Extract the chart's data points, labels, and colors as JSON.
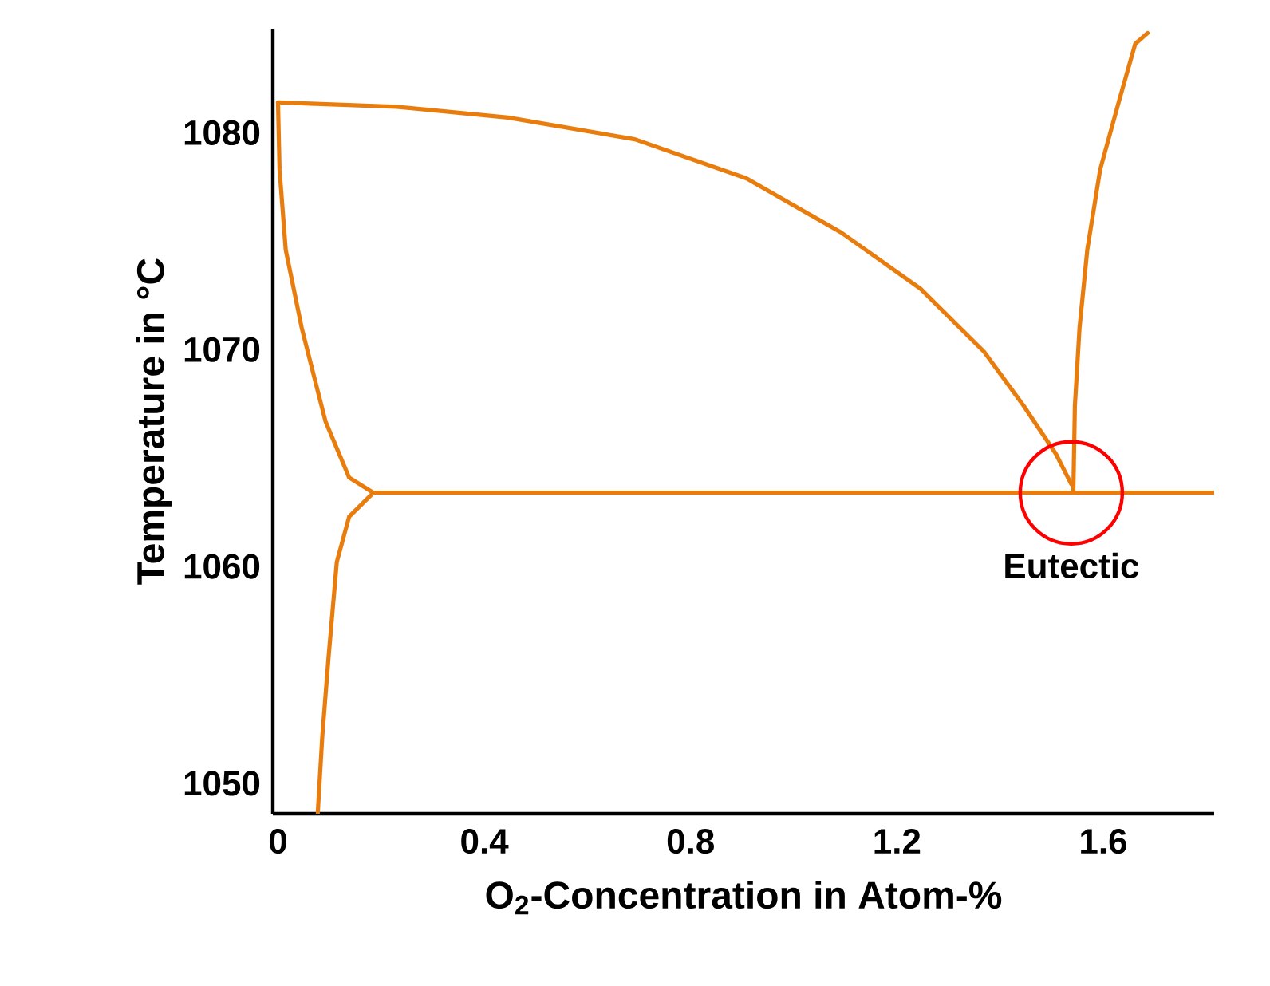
{
  "chart_data": {
    "type": "line",
    "xlabel": "O$_{2}$-Concentration in Atom-%",
    "ylabel": "Temperature in °C",
    "xlim": [
      -0.01,
      1.815
    ],
    "ylim": [
      1048.6,
      1084.8
    ],
    "xticks": [
      {
        "value": 0,
        "label": "0"
      },
      0.4,
      0.8,
      1.2,
      1.6
    ],
    "yticks": [
      1050,
      1060,
      1070,
      1080
    ],
    "marker": "none",
    "line_style": "solid",
    "series": [
      {
        "color": "#e87d0e",
        "x": [
          0,
          0.23,
          0.446,
          0.692,
          0.908,
          1.092,
          1.246,
          1.369,
          1.446,
          1.508,
          1.538
        ],
        "values": [
          1081.4,
          1081.2,
          1080.7,
          1079.7,
          1077.9,
          1075.4,
          1072.8,
          1069.9,
          1067.4,
          1065.2,
          1063.8
        ]
      },
      {
        "color": "#e87d0e",
        "x": [
          0,
          0.003,
          0.015,
          0.046,
          0.092,
          0.138,
          0.185
        ],
        "values": [
          1081.4,
          1078.3,
          1074.6,
          1071.0,
          1066.7,
          1064.1,
          1063.4
        ]
      },
      {
        "color": "#e87d0e",
        "x": [
          0.185,
          0.138,
          0.114,
          0.098,
          0.086,
          0.077
        ],
        "values": [
          1063.4,
          1062.3,
          1060.2,
          1055.8,
          1052.2,
          1048.6
        ]
      },
      {
        "color": "#e87d0e",
        "x": [
          0.185,
          1.815
        ],
        "values": [
          1063.4,
          1063.4
        ]
      },
      {
        "color": "#e87d0e",
        "x": [
          1.542,
          1.545,
          1.554,
          1.569,
          1.594,
          1.631,
          1.662,
          1.686
        ],
        "values": [
          1063.4,
          1067.4,
          1071.0,
          1074.6,
          1078.3,
          1081.5,
          1084.1,
          1084.6
        ]
      }
    ],
    "annotations": [
      {
        "text": "Eutectic",
        "x": 1.538,
        "y": 1063.4
      }
    ]
  }
}
